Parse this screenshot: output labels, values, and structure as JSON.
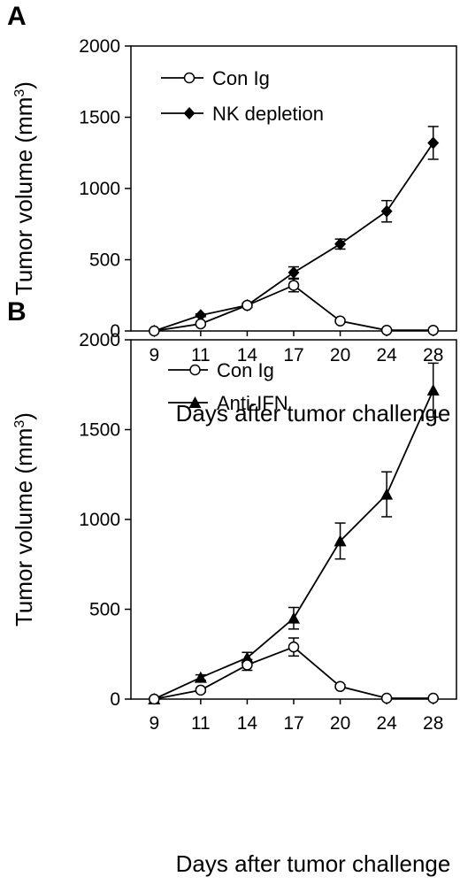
{
  "chart_data": [
    {
      "type": "line",
      "panel_label": "A",
      "ylabel": "Tumor volume (mm",
      "ylabel_sup": "3",
      "ylabel_close": ")",
      "xlabel": "Days after tumor challenge",
      "categories": [
        "9",
        "11",
        "14",
        "17",
        "20",
        "24",
        "28"
      ],
      "ylim": [
        0,
        2000
      ],
      "yticks": [
        "0",
        "500",
        "1000",
        "1500",
        "2000"
      ],
      "grid": false,
      "legend": "top-left",
      "series": [
        {
          "name": "Con Ig",
          "marker": "open-circle",
          "values": [
            0,
            50,
            180,
            320,
            70,
            5,
            5
          ],
          "errors": [
            0,
            10,
            15,
            45,
            10,
            3,
            3
          ]
        },
        {
          "name": "NK depletion",
          "marker": "filled-diamond",
          "values": [
            0,
            110,
            180,
            410,
            610,
            840,
            1320
          ],
          "errors": [
            0,
            10,
            15,
            40,
            35,
            75,
            115
          ]
        }
      ]
    },
    {
      "type": "line",
      "panel_label": "B",
      "ylabel": "Tumor volume (mm",
      "ylabel_sup": "3",
      "ylabel_close": ")",
      "xlabel": "Days after tumor challenge",
      "categories": [
        "9",
        "11",
        "14",
        "17",
        "20",
        "24",
        "28"
      ],
      "ylim": [
        0,
        2000
      ],
      "yticks": [
        "0",
        "500",
        "1000",
        "1500",
        "2000"
      ],
      "grid": false,
      "legend": "top-left",
      "series": [
        {
          "name": "Con Ig",
          "marker": "open-circle",
          "values": [
            0,
            50,
            190,
            290,
            70,
            5,
            5
          ],
          "errors": [
            0,
            10,
            30,
            50,
            10,
            3,
            3
          ]
        },
        {
          "name": "Anti-IFN",
          "marker": "filled-triangle",
          "values": [
            0,
            120,
            230,
            450,
            880,
            1140,
            1720
          ],
          "errors": [
            0,
            15,
            30,
            60,
            100,
            125,
            150
          ]
        }
      ]
    }
  ]
}
